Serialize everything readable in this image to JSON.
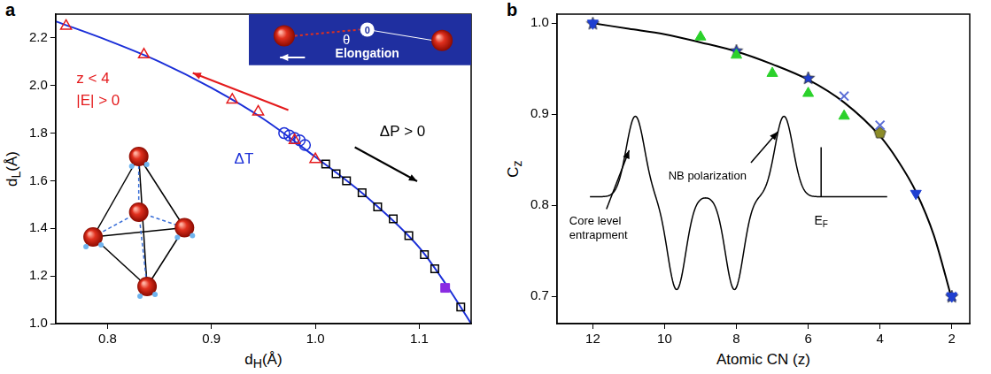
{
  "chart_data": [
    {
      "type": "scatter",
      "panel_label": "a",
      "x_title": {
        "text": "d",
        "sub": "H",
        "suffix": "(Å)"
      },
      "y_title": {
        "text": "d",
        "sub": "L",
        "suffix": "(Å)"
      },
      "xlim": [
        0.75,
        1.15
      ],
      "xticks": [
        0.8,
        0.9,
        {
          "value": 1,
          "label": "1.0"
        },
        1.1
      ],
      "ylim": [
        1.0,
        2.3
      ],
      "yticks": [
        {
          "value": 1,
          "label": "1.0"
        },
        1.2,
        1.4,
        1.6,
        1.8,
        {
          "value": 2,
          "label": "2.0"
        },
        2.2
      ],
      "grid": false,
      "series": [
        {
          "type": "line",
          "color": "#1b2fd8",
          "marker": "none",
          "line_style": "solid",
          "x": [
            0.75,
            0.8,
            0.85,
            0.9,
            0.95,
            1.0,
            1.05,
            1.1,
            1.125,
            1.15
          ],
          "values": [
            2.27,
            2.19,
            2.1,
            1.99,
            1.86,
            1.7,
            1.53,
            1.32,
            1.17,
            1.0
          ]
        },
        {
          "color": "#e41a1c",
          "marker": "triangle_open",
          "x": [
            0.76,
            0.835,
            0.92,
            0.945,
            0.98,
            1.0
          ],
          "values": [
            2.25,
            2.13,
            1.94,
            1.89,
            1.77,
            1.69
          ]
        },
        {
          "color": "#1b2fd8",
          "marker": "circle_open",
          "x": [
            0.97,
            0.975,
            0.98,
            0.985,
            0.99
          ],
          "values": [
            1.8,
            1.79,
            1.78,
            1.77,
            1.75
          ]
        },
        {
          "color": "#000000",
          "marker": "square_open",
          "x": [
            1.01,
            1.02,
            1.03,
            1.045,
            1.06,
            1.075,
            1.09,
            1.105,
            1.115,
            1.14
          ],
          "values": [
            1.67,
            1.63,
            1.6,
            1.55,
            1.49,
            1.44,
            1.37,
            1.29,
            1.23,
            1.07
          ]
        },
        {
          "color": "#8a2be2",
          "marker": "square",
          "x": [
            1.125
          ],
          "values": [
            1.15
          ]
        }
      ],
      "annotations": [
        {
          "text": "z < 4",
          "color": "#e41a1c"
        },
        {
          "text": "|E| > 0",
          "color": "#e41a1c"
        },
        {
          "text": "ΔT",
          "color": "#1b2fd8"
        },
        {
          "text": "ΔP > 0",
          "color": "#000000"
        }
      ],
      "inset_texts": {
        "caption": "Elongation",
        "angle": "θ",
        "atom": "0"
      }
    },
    {
      "type": "scatter",
      "panel_label": "b",
      "x_title": {
        "text": "Atomic CN (z)"
      },
      "y_title": {
        "text": "C",
        "sub": "z"
      },
      "xlim": [
        13,
        1.5
      ],
      "xticks": [
        12,
        10,
        8,
        6,
        4,
        2
      ],
      "ylim": [
        0.67,
        1.01
      ],
      "yticks": [
        0.7,
        0.8,
        0.9,
        {
          "value": 1,
          "label": "1.0"
        }
      ],
      "grid": false,
      "series": [
        {
          "type": "line",
          "color": "#000000",
          "marker": "none",
          "line_style": "solid",
          "x": [
            12,
            11,
            10,
            9,
            8,
            7,
            6,
            5,
            4,
            3.5,
            3,
            2.5,
            2
          ],
          "values": [
            1.0,
            0.994,
            0.988,
            0.979,
            0.969,
            0.955,
            0.938,
            0.913,
            0.876,
            0.849,
            0.815,
            0.767,
            0.697
          ]
        },
        {
          "color": "#1f3fd1",
          "marker": "triangle_down",
          "x": [
            12,
            3,
            2
          ],
          "values": [
            1.0,
            0.813,
            0.7
          ]
        },
        {
          "color": "#2bd12b",
          "marker": "triangle",
          "x": [
            9,
            8,
            7,
            6,
            5
          ],
          "values": [
            0.985,
            0.965,
            0.945,
            0.923,
            0.898
          ]
        },
        {
          "color": "#1f3fd1",
          "marker": "star",
          "x": [
            12,
            8,
            6,
            2
          ],
          "values": [
            1.0,
            0.97,
            0.94,
            0.7
          ]
        },
        {
          "color": "#5c6fd6",
          "marker": "x",
          "x": [
            5,
            4,
            2
          ],
          "values": [
            0.92,
            0.888,
            0.7
          ]
        },
        {
          "color": "#8c8c28",
          "marker": "pentagon",
          "x": [
            4
          ],
          "values": [
            0.88
          ]
        }
      ],
      "inset_labels": {
        "left": "Core level entrapment",
        "middle": "NB polarization",
        "right": {
          "text": "E",
          "sub": "F"
        }
      }
    }
  ]
}
